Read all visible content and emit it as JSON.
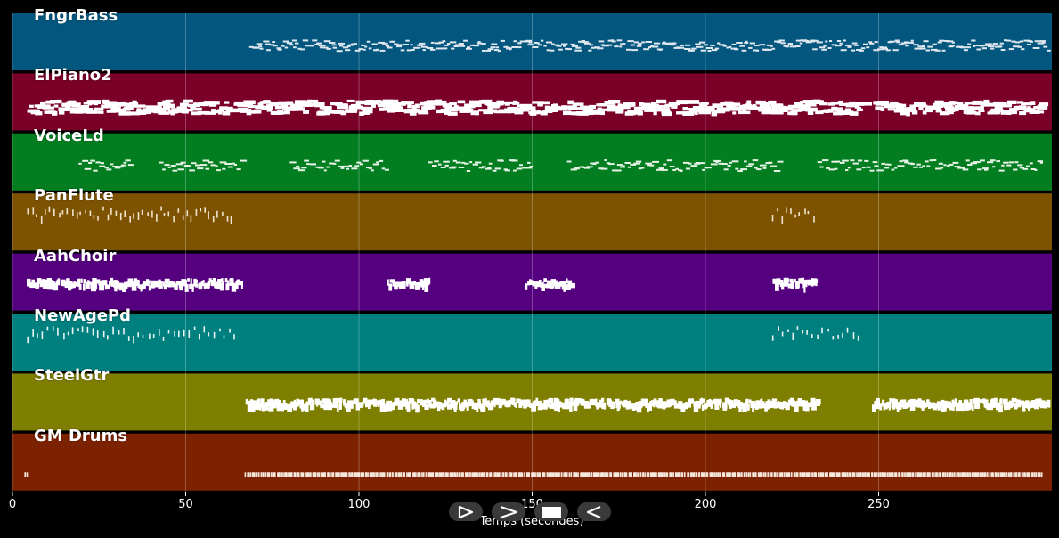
{
  "window": {
    "title": ""
  },
  "timeline": {
    "axis_title": "Temps (secondes)",
    "x_range": [
      0,
      300
    ],
    "ticks": [
      {
        "value": 0,
        "label": "0"
      },
      {
        "value": 50,
        "label": "50"
      },
      {
        "value": 100,
        "label": "100"
      },
      {
        "value": 150,
        "label": "150"
      },
      {
        "value": 200,
        "label": "200"
      },
      {
        "value": 250,
        "label": "250"
      }
    ]
  },
  "tracks": [
    {
      "name": "FngrBass",
      "color": "#03577f",
      "note_color": "#dfe7ee",
      "segments": [
        [
          68,
          300
        ]
      ],
      "density": 1.6,
      "style": "line"
    },
    {
      "name": "ElPiano2",
      "color": "#7a0028",
      "note_color": "#ffffff",
      "segments": [
        [
          4,
          62
        ],
        [
          62,
          221
        ],
        [
          219,
          233
        ],
        [
          233,
          245
        ],
        [
          248,
          297
        ]
      ],
      "density": 2.2,
      "style": "block"
    },
    {
      "name": "VoiceLd",
      "color": "#027e20",
      "note_color": "#e6f2e6",
      "segments": [
        [
          19,
          34
        ],
        [
          42,
          66
        ],
        [
          80,
          108
        ],
        [
          120,
          150
        ],
        [
          160,
          221
        ],
        [
          232,
          297
        ]
      ],
      "density": 1.3,
      "style": "line"
    },
    {
      "name": "PanFlute",
      "color": "#7d5200",
      "note_color": "#f0e4cc",
      "segments": [
        [
          4,
          64
        ],
        [
          219,
          232
        ]
      ],
      "density": 0.8,
      "style": "tick"
    },
    {
      "name": "AahChoir",
      "color": "#55007f",
      "note_color": "#ffffff",
      "segments": [
        [
          4,
          66
        ],
        [
          108,
          120
        ],
        [
          148,
          161
        ],
        [
          219,
          232
        ]
      ],
      "density": 2.4,
      "style": "bar"
    },
    {
      "name": "NewAgePd",
      "color": "#007f7f",
      "note_color": "#e8f6f6",
      "segments": [
        [
          4,
          65
        ],
        [
          219,
          245
        ]
      ],
      "density": 0.7,
      "style": "tick"
    },
    {
      "name": "SteelGtr",
      "color": "#7e7e00",
      "note_color": "#ffffff",
      "segments": [
        [
          67,
          232
        ],
        [
          248,
          300
        ]
      ],
      "density": 2.8,
      "style": "bar"
    },
    {
      "name": "GM Drums",
      "color": "#7d2200",
      "note_color": "#f6e6dc",
      "segments": [
        [
          3,
          4
        ],
        [
          67,
          297
        ]
      ],
      "density": 3.0,
      "style": "drum"
    }
  ],
  "controls": [
    {
      "name": "play-forward",
      "icon": "play-right-icon"
    },
    {
      "name": "fast-forward",
      "icon": "chevron-right-icon"
    },
    {
      "name": "stop",
      "icon": "stop-icon"
    },
    {
      "name": "play-reverse",
      "icon": "play-left-icon"
    }
  ]
}
